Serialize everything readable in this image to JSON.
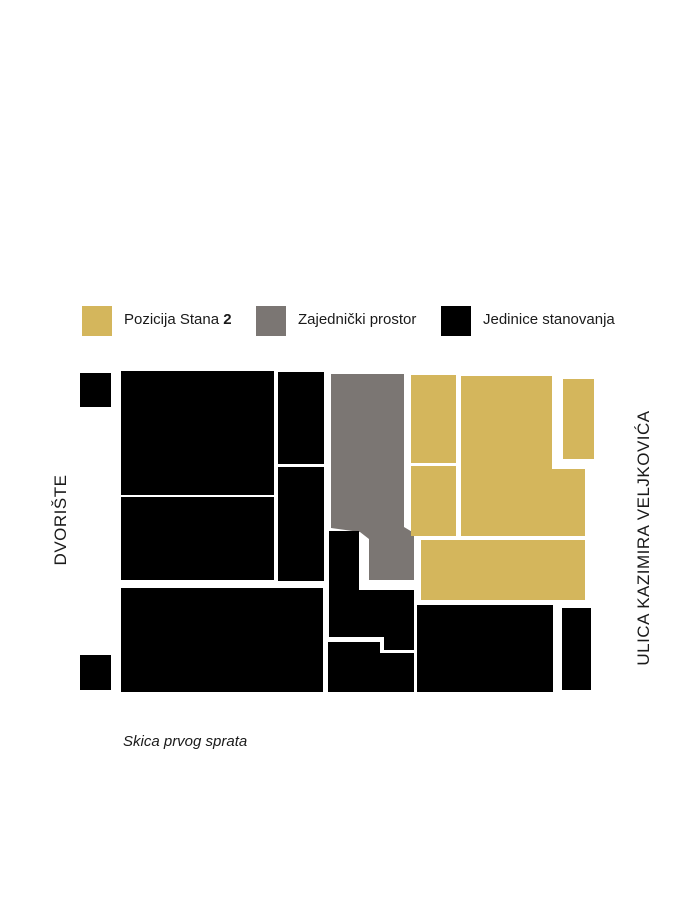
{
  "legend": {
    "apartment": {
      "text": "Pozicija Stana ",
      "number": "2",
      "color": "#d4b65c"
    },
    "common": {
      "text": "Zajednički prostor",
      "color": "#7b7673"
    },
    "units": {
      "text": "Jedinice stanovanja",
      "color": "#000000"
    }
  },
  "labels": {
    "courtyard": "DVORIŠTE",
    "street": "ULICA KAZIMIRA VELJKOVIĆA",
    "caption": "Skica prvog sprata"
  }
}
